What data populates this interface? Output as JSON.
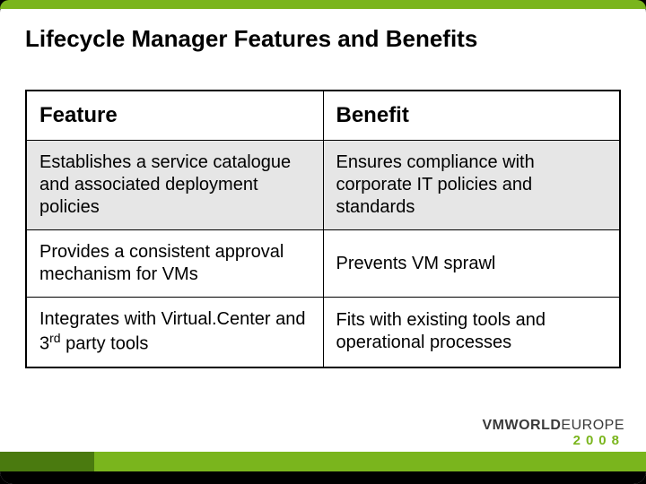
{
  "colors": {
    "accent_green": "#7ab51d",
    "accent_green_dark": "#4a7a0f",
    "row_shade": "#e6e6e6",
    "background": "#ffffff",
    "border": "#000000",
    "text": "#000000",
    "logo_gray": "#3a3a3a"
  },
  "title": "Lifecycle Manager Features and Benefits",
  "table": {
    "columns": [
      "Feature",
      "Benefit"
    ],
    "rows": [
      {
        "feature": "Establishes a service catalogue and associated deployment policies",
        "benefit": "Ensures compliance with corporate IT policies and standards",
        "shaded": true
      },
      {
        "feature": "Provides a consistent approval mechanism for VMs",
        "benefit": "Prevents VM sprawl",
        "shaded": false
      },
      {
        "feature_html": "Integrates with Virtual.Center and 3<sup>rd</sup> party tools",
        "feature": "Integrates with Virtual.Center and 3rd party tools",
        "benefit": "Fits with existing tools and operational processes",
        "shaded": false
      }
    ]
  },
  "logo": {
    "line1_bold": "VMWORLD",
    "line1_thin": "EUROPE",
    "line2": "2008"
  }
}
